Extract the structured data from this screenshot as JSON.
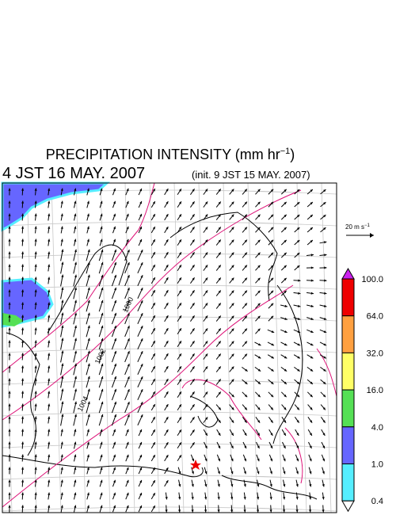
{
  "header": {
    "title": {
      "main": "PRECIPITATION INTENSITY (mm hr",
      "exponent": "−1",
      "end": ")"
    },
    "valid_time": "4 JST 16 MAY. 2007",
    "init_time": "(init. 9 JST 15 MAY. 2007)"
  },
  "reference_vector": {
    "label": "20 m s",
    "exponent": "−1"
  },
  "colorbar": {
    "labels": [
      "100.0",
      "64.0",
      "32.0",
      "16.0",
      "4.0",
      "1.0",
      "0.4"
    ],
    "colors": [
      "#ee0000",
      "#ffa040",
      "#ffff66",
      "#55e055",
      "#6666ff",
      "#55eeff"
    ],
    "over_color": "#cc22ee",
    "under_color": "#ffffff"
  },
  "isobar_labels": [
    "1000",
    "1002",
    "1004"
  ]
}
